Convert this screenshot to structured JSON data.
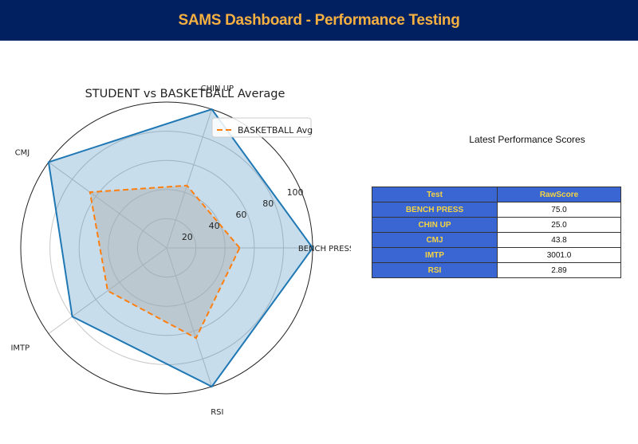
{
  "header": {
    "title": "SAMS Dashboard - Performance Testing"
  },
  "chart_data": {
    "type": "radar",
    "title": "STUDENT vs BASKETBALL Average",
    "axes": [
      "BENCH PRESS",
      "CHIN UP",
      "CMJ",
      "IMTP",
      "RSI"
    ],
    "rlim": [
      0,
      100
    ],
    "rticks": [
      20,
      40,
      60,
      80,
      100
    ],
    "series": [
      {
        "name": "",
        "values": [
          100,
          100,
          100,
          80,
          100
        ],
        "color": "#1f77b4",
        "style": "solid",
        "fill": "#1f77b4"
      },
      {
        "name": "BASKETBALL Avg",
        "values": [
          50,
          45,
          65,
          50,
          65
        ],
        "color": "#ff7f0e",
        "style": "dashed",
        "fill": "#b0b0b0"
      }
    ],
    "legend": "top-right",
    "grid": true
  },
  "table": {
    "caption": "Latest Performance Scores",
    "headers": [
      "Test",
      "RawScore"
    ],
    "rows": [
      [
        "BENCH PRESS",
        "75.0"
      ],
      [
        "CHIN UP",
        "25.0"
      ],
      [
        "CMJ",
        "43.8"
      ],
      [
        "IMTP",
        "3001.0"
      ],
      [
        "RSI",
        "2.89"
      ]
    ]
  }
}
